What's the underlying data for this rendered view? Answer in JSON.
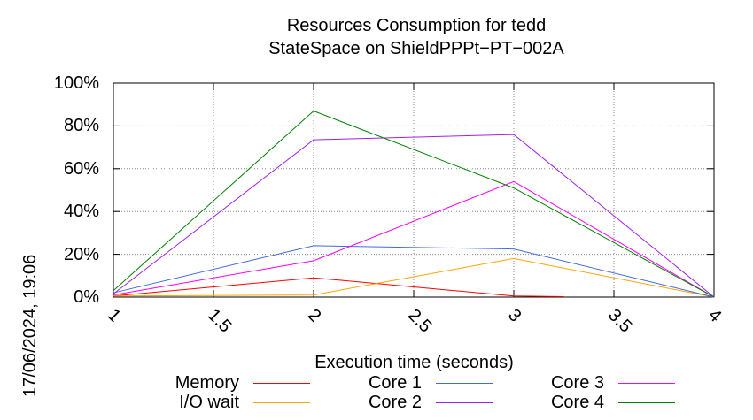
{
  "chart_data": {
    "type": "line",
    "title": "Resources Consumption for tedd",
    "subtitle": "StateSpace on ShieldPPPt−PT−002A",
    "xlabel": "Execution time (seconds)",
    "ylabel": "",
    "xlim": [
      1,
      4
    ],
    "ylim": [
      0,
      100
    ],
    "x_ticks": [
      "1",
      "1.5",
      "2",
      "2.5",
      "3",
      "3.5",
      "4"
    ],
    "y_ticks": [
      "0%",
      "20%",
      "40%",
      "60%",
      "80%",
      "100%"
    ],
    "grid": true,
    "legend_position": "bottom",
    "timestamp": "17/06/2024, 19:06",
    "series": [
      {
        "name": "Memory",
        "color": "#ff0000",
        "x": [
          1,
          2,
          3,
          3.25
        ],
        "values": [
          0.5,
          9,
          0.5,
          0.2
        ]
      },
      {
        "name": "I/O wait",
        "color": "#ffa500",
        "x": [
          1,
          2,
          3,
          4
        ],
        "values": [
          0.5,
          1,
          18,
          0
        ]
      },
      {
        "name": "Core 1",
        "color": "#4169e1",
        "x": [
          1,
          2,
          3,
          4
        ],
        "values": [
          2,
          24,
          22.5,
          0
        ]
      },
      {
        "name": "Core 2",
        "color": "#a020f0",
        "x": [
          1,
          2,
          3,
          4
        ],
        "values": [
          1.5,
          73.5,
          76,
          0
        ]
      },
      {
        "name": "Core 3",
        "color": "#ff00ff",
        "x": [
          1,
          2,
          3,
          4
        ],
        "values": [
          1,
          17,
          54,
          0
        ]
      },
      {
        "name": "Core 4",
        "color": "#008000",
        "x": [
          1,
          2,
          3,
          4
        ],
        "values": [
          3,
          87,
          51,
          0
        ]
      }
    ]
  }
}
